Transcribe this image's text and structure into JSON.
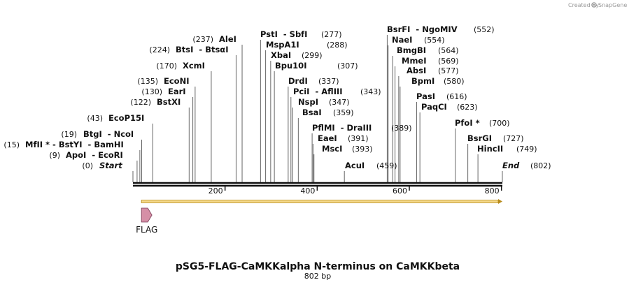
{
  "credit": {
    "created_by": "Created by",
    "brand": "SnapGene"
  },
  "title": "pSG5-FLAG-CaMKKalpha N-terminus on CaMKKbeta",
  "length_label": "802 bp",
  "length_bp": 802,
  "ruler_ticks": [
    "200",
    "400",
    "600",
    "800"
  ],
  "ruler_values": [
    200,
    400,
    600,
    800
  ],
  "colors": {
    "frame_fill": "#f5d98b",
    "frame_stroke": "#b78a1a",
    "flag_fill": "#d58fa6",
    "flag_stroke": "#7a3b55"
  },
  "sites": [
    {
      "pos": 0,
      "pos_label": "(0)",
      "parts": [
        {
          "t": "Start",
          "italic": true
        }
      ]
    },
    {
      "pos": 9,
      "pos_label": "(9)",
      "parts": [
        {
          "t": "ApoI"
        },
        {
          "t": "  - "
        },
        {
          "t": "EcoRI"
        }
      ]
    },
    {
      "pos": 15,
      "pos_label": "(15)",
      "parts": [
        {
          "t": "MfII *"
        },
        {
          "t": " - "
        },
        {
          "t": "BstYI"
        },
        {
          "t": "  - "
        },
        {
          "t": "BamHI"
        }
      ]
    },
    {
      "pos": 19,
      "pos_label": "(19)",
      "parts": [
        {
          "t": "BtgI"
        },
        {
          "t": "  - "
        },
        {
          "t": "NcoI"
        }
      ]
    },
    {
      "pos": 43,
      "pos_label": "(43)",
      "parts": [
        {
          "t": "EcoP15I"
        }
      ]
    },
    {
      "pos": 122,
      "pos_label": "(122)",
      "parts": [
        {
          "t": "BstXI"
        }
      ]
    },
    {
      "pos": 130,
      "pos_label": "(130)",
      "parts": [
        {
          "t": "EarI"
        }
      ]
    },
    {
      "pos": 135,
      "pos_label": "(135)",
      "parts": [
        {
          "t": "EcoNI"
        }
      ]
    },
    {
      "pos": 170,
      "pos_label": "(170)",
      "parts": [
        {
          "t": "XcmI"
        }
      ]
    },
    {
      "pos": 224,
      "pos_label": "(224)",
      "parts": [
        {
          "t": "BtsI"
        },
        {
          "t": "  - "
        },
        {
          "t": "BtsαI"
        }
      ]
    },
    {
      "pos": 237,
      "pos_label": "(237)",
      "parts": [
        {
          "t": "AleI"
        }
      ]
    },
    {
      "pos": 277,
      "pos_label": "(277)",
      "parts": [
        {
          "t": "PstI"
        },
        {
          "t": "  - "
        },
        {
          "t": "SbfI"
        }
      ]
    },
    {
      "pos": 288,
      "pos_label": "(288)",
      "parts": [
        {
          "t": "MspA1I"
        }
      ]
    },
    {
      "pos": 299,
      "pos_label": "(299)",
      "parts": [
        {
          "t": "XbaI"
        }
      ]
    },
    {
      "pos": 307,
      "pos_label": "(307)",
      "parts": [
        {
          "t": "Bpu10I"
        }
      ]
    },
    {
      "pos": 337,
      "pos_label": "(337)",
      "parts": [
        {
          "t": "DrdI"
        }
      ]
    },
    {
      "pos": 343,
      "pos_label": "(343)",
      "parts": [
        {
          "t": "PciI"
        },
        {
          "t": "  - "
        },
        {
          "t": "AflIII"
        }
      ]
    },
    {
      "pos": 347,
      "pos_label": "(347)",
      "parts": [
        {
          "t": "NspI"
        }
      ]
    },
    {
      "pos": 359,
      "pos_label": "(359)",
      "parts": [
        {
          "t": "BsaI"
        }
      ]
    },
    {
      "pos": 389,
      "pos_label": "(389)",
      "parts": [
        {
          "t": "PflMI"
        },
        {
          "t": "  - "
        },
        {
          "t": "DraIII"
        }
      ]
    },
    {
      "pos": 391,
      "pos_label": "(391)",
      "parts": [
        {
          "t": "EaeI"
        }
      ]
    },
    {
      "pos": 393,
      "pos_label": "(393)",
      "parts": [
        {
          "t": "MscI"
        }
      ]
    },
    {
      "pos": 459,
      "pos_label": "(459)",
      "parts": [
        {
          "t": "AcuI"
        }
      ]
    },
    {
      "pos": 552,
      "pos_label": "(552)",
      "parts": [
        {
          "t": "BsrFI"
        },
        {
          "t": "  - "
        },
        {
          "t": "NgoMIV"
        }
      ]
    },
    {
      "pos": 554,
      "pos_label": "(554)",
      "parts": [
        {
          "t": "NaeI"
        }
      ]
    },
    {
      "pos": 564,
      "pos_label": "(564)",
      "parts": [
        {
          "t": "BmgBI"
        }
      ]
    },
    {
      "pos": 569,
      "pos_label": "(569)",
      "parts": [
        {
          "t": "MmeI"
        }
      ]
    },
    {
      "pos": 577,
      "pos_label": "(577)",
      "parts": [
        {
          "t": "AbsI"
        }
      ]
    },
    {
      "pos": 580,
      "pos_label": "(580)",
      "parts": [
        {
          "t": "BpmI"
        }
      ]
    },
    {
      "pos": 616,
      "pos_label": "(616)",
      "parts": [
        {
          "t": "PasI"
        }
      ]
    },
    {
      "pos": 623,
      "pos_label": "(623)",
      "parts": [
        {
          "t": "PaqCI"
        }
      ]
    },
    {
      "pos": 700,
      "pos_label": "(700)",
      "parts": [
        {
          "t": "PfoI *"
        }
      ]
    },
    {
      "pos": 727,
      "pos_label": "(727)",
      "parts": [
        {
          "t": "BsrGI"
        }
      ]
    },
    {
      "pos": 749,
      "pos_label": "(749)",
      "parts": [
        {
          "t": "HincII"
        }
      ]
    },
    {
      "pos": 802,
      "pos_label": "(802)",
      "parts": [
        {
          "t": "End",
          "italic": true
        }
      ]
    }
  ],
  "features": [
    {
      "name": "orf",
      "label": "",
      "start": 20,
      "end": 802,
      "type": "frame"
    },
    {
      "name": "flag",
      "label": "FLAG",
      "start": 20,
      "end": 45,
      "type": "arrow"
    }
  ]
}
